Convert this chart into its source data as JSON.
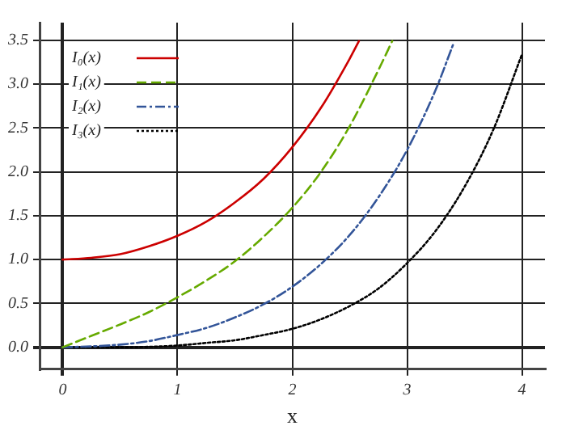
{
  "chart_data": {
    "type": "line",
    "xlabel": "x",
    "xlim": [
      -0.2,
      4.2
    ],
    "ylim": [
      -0.25,
      3.7
    ],
    "xticks": [
      0,
      1,
      2,
      3,
      4
    ],
    "yticks": [
      {
        "value": 0,
        "label": "0.0"
      },
      {
        "value": 0.5,
        "label": "0.5"
      },
      {
        "value": 1,
        "label": "1.0"
      },
      {
        "value": 1.5,
        "label": "1.5"
      },
      {
        "value": 2,
        "label": "2.0"
      },
      {
        "value": 2.5,
        "label": "2.5"
      },
      {
        "value": 3,
        "label": "3.0"
      },
      {
        "value": 3.5,
        "label": "3.5"
      }
    ],
    "grid": true,
    "legend": "top left",
    "marker": "none",
    "series": [
      {
        "name": "I₀(x)",
        "color": "#cc0000",
        "line_style": "solid",
        "x": [
          0,
          0.25,
          0.5,
          0.75,
          1,
          1.25,
          1.5,
          1.75,
          2,
          2.25,
          2.5,
          2.58
        ],
        "values": [
          1,
          1.02,
          1.06,
          1.15,
          1.27,
          1.43,
          1.65,
          1.92,
          2.28,
          2.73,
          3.29,
          3.49
        ]
      },
      {
        "name": "I₁(x)",
        "color": "#66aa00",
        "line_style": "dashed",
        "x": [
          0,
          0.25,
          0.5,
          0.75,
          1,
          1.25,
          1.5,
          1.75,
          2,
          2.25,
          2.5,
          2.75,
          2.87
        ],
        "values": [
          0,
          0.13,
          0.26,
          0.4,
          0.57,
          0.76,
          0.98,
          1.26,
          1.59,
          2,
          2.52,
          3.16,
          3.49
        ]
      },
      {
        "name": "I₂(x)",
        "color": "#335599",
        "line_style": "dashdot",
        "x": [
          0,
          0.25,
          0.5,
          0.75,
          1,
          1.25,
          1.5,
          1.75,
          2,
          2.25,
          2.5,
          2.75,
          3,
          3.25,
          3.4
        ],
        "values": [
          0,
          0.01,
          0.03,
          0.07,
          0.14,
          0.22,
          0.34,
          0.49,
          0.69,
          0.95,
          1.28,
          1.71,
          2.25,
          2.94,
          3.45
        ]
      },
      {
        "name": "I₃(x)",
        "color": "#000000",
        "line_style": "dotted",
        "x": [
          0,
          0.5,
          1,
          1.25,
          1.5,
          1.75,
          2,
          2.25,
          2.5,
          2.75,
          3,
          3.25,
          3.5,
          3.75,
          4
        ],
        "values": [
          0,
          0,
          0.02,
          0.05,
          0.08,
          0.14,
          0.21,
          0.32,
          0.47,
          0.67,
          0.96,
          1.33,
          1.83,
          2.48,
          3.34
        ]
      }
    ]
  }
}
